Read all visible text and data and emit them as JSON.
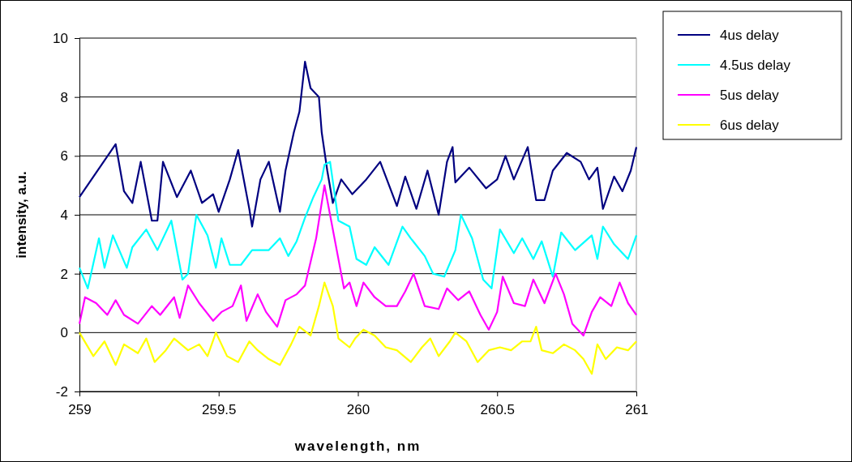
{
  "chart_data": {
    "type": "line",
    "xlabel": "wavelength, nm",
    "ylabel": "intensity, a.u.",
    "xlim": [
      259,
      261
    ],
    "xticks": [
      259,
      259.5,
      260,
      260.5,
      261
    ],
    "ylim": [
      -2,
      10
    ],
    "yticks": [
      -2,
      0,
      2,
      4,
      6,
      8,
      10
    ],
    "grid": "y",
    "legend": "top right",
    "marker": "none",
    "line_style": "solid",
    "series": [
      {
        "name": "4us delay",
        "color": "#000080",
        "x": [
          259,
          259.13,
          259.16,
          259.19,
          259.22,
          259.26,
          259.28,
          259.3,
          259.35,
          259.4,
          259.44,
          259.48,
          259.5,
          259.54,
          259.57,
          259.61,
          259.62,
          259.65,
          259.68,
          259.72,
          259.74,
          259.77,
          259.79,
          259.81,
          259.83,
          259.86,
          259.87,
          259.89,
          259.91,
          259.94,
          259.98,
          260.03,
          260.08,
          260.14,
          260.17,
          260.21,
          260.25,
          260.29,
          260.32,
          260.34,
          260.35,
          260.4,
          260.46,
          260.5,
          260.53,
          260.56,
          260.61,
          260.64,
          260.67,
          260.7,
          260.75,
          260.8,
          260.83,
          260.86,
          260.88,
          260.92,
          260.95,
          260.98,
          261
        ],
        "values": [
          4.6,
          6.4,
          4.8,
          4.4,
          5.8,
          3.8,
          3.8,
          5.8,
          4.6,
          5.5,
          4.4,
          4.7,
          4.1,
          5.2,
          6.2,
          4.2,
          3.6,
          5.2,
          5.8,
          4.1,
          5.5,
          6.8,
          7.5,
          9.2,
          8.3,
          8,
          6.8,
          5.5,
          4.4,
          5.2,
          4.7,
          5.2,
          5.8,
          4.3,
          5.3,
          4.2,
          5.5,
          4,
          5.8,
          6.3,
          5.1,
          5.6,
          4.9,
          5.2,
          6,
          5.2,
          6.3,
          4.5,
          4.5,
          5.5,
          6.1,
          5.8,
          5.2,
          5.6,
          4.2,
          5.3,
          4.8,
          5.5,
          6.3
        ]
      },
      {
        "name": "4.5us delay",
        "color": "#00ffff",
        "x": [
          259,
          259.03,
          259.07,
          259.09,
          259.12,
          259.17,
          259.19,
          259.24,
          259.28,
          259.33,
          259.37,
          259.39,
          259.42,
          259.46,
          259.49,
          259.51,
          259.54,
          259.58,
          259.62,
          259.68,
          259.72,
          259.75,
          259.78,
          259.81,
          259.84,
          259.87,
          259.88,
          259.9,
          259.93,
          259.97,
          259.995,
          260.03,
          260.06,
          260.11,
          260.16,
          260.19,
          260.24,
          260.27,
          260.31,
          260.35,
          260.37,
          260.41,
          260.45,
          260.48,
          260.51,
          260.56,
          260.59,
          260.63,
          260.66,
          260.7,
          260.73,
          260.78,
          260.84,
          260.86,
          260.88,
          260.92,
          260.97,
          261
        ],
        "values": [
          2.2,
          1.5,
          3.2,
          2.2,
          3.3,
          2.2,
          2.9,
          3.5,
          2.8,
          3.8,
          1.8,
          2,
          4,
          3.3,
          2.2,
          3.2,
          2.3,
          2.3,
          2.8,
          2.8,
          3.2,
          2.6,
          3.1,
          3.9,
          4.6,
          5.2,
          5.7,
          5.8,
          3.8,
          3.6,
          2.5,
          2.3,
          2.9,
          2.3,
          3.6,
          3.2,
          2.6,
          2,
          1.9,
          2.8,
          4,
          3.2,
          1.8,
          1.5,
          3.5,
          2.7,
          3.2,
          2.5,
          3.1,
          1.9,
          3.4,
          2.8,
          3.3,
          2.5,
          3.6,
          3,
          2.5,
          3.3
        ]
      },
      {
        "name": "5us delay",
        "color": "#ff00ff",
        "x": [
          259,
          259.02,
          259.06,
          259.1,
          259.13,
          259.16,
          259.21,
          259.26,
          259.29,
          259.34,
          259.36,
          259.39,
          259.43,
          259.48,
          259.51,
          259.55,
          259.58,
          259.6,
          259.64,
          259.67,
          259.71,
          259.74,
          259.78,
          259.81,
          259.83,
          259.85,
          259.88,
          259.9,
          259.92,
          259.95,
          259.97,
          259.995,
          260.02,
          260.06,
          260.1,
          260.14,
          260.17,
          260.2,
          260.24,
          260.29,
          260.32,
          260.36,
          260.4,
          260.44,
          260.47,
          260.5,
          260.52,
          260.56,
          260.6,
          260.63,
          260.67,
          260.71,
          260.74,
          260.77,
          260.81,
          260.84,
          260.87,
          260.91,
          260.94,
          260.97,
          261
        ],
        "values": [
          0.3,
          1.2,
          1,
          0.6,
          1.1,
          0.6,
          0.3,
          0.9,
          0.6,
          1.2,
          0.5,
          1.6,
          1,
          0.4,
          0.7,
          0.9,
          1.6,
          0.4,
          1.3,
          0.7,
          0.2,
          1.1,
          1.3,
          1.6,
          2.4,
          3.2,
          5,
          4,
          3,
          1.5,
          1.7,
          0.9,
          1.7,
          1.2,
          0.9,
          0.9,
          1.4,
          2,
          0.9,
          0.8,
          1.5,
          1.1,
          1.4,
          0.6,
          0.1,
          0.7,
          1.9,
          1,
          0.9,
          1.8,
          1,
          2,
          1.3,
          0.3,
          -0.1,
          0.7,
          1.2,
          0.9,
          1.7,
          1,
          0.6
        ]
      },
      {
        "name": "6us delay",
        "color": "#ffff00",
        "x": [
          259,
          259.05,
          259.09,
          259.13,
          259.16,
          259.21,
          259.24,
          259.27,
          259.31,
          259.34,
          259.39,
          259.43,
          259.46,
          259.49,
          259.53,
          259.57,
          259.61,
          259.64,
          259.68,
          259.72,
          259.76,
          259.79,
          259.83,
          259.86,
          259.88,
          259.91,
          259.93,
          259.97,
          259.99,
          260.02,
          260.06,
          260.1,
          260.14,
          260.19,
          260.23,
          260.26,
          260.29,
          260.33,
          260.35,
          260.39,
          260.43,
          260.47,
          260.51,
          260.55,
          260.59,
          260.62,
          260.64,
          260.66,
          260.7,
          260.74,
          260.78,
          260.81,
          260.84,
          260.86,
          260.89,
          260.93,
          260.97,
          261
        ],
        "values": [
          0,
          -0.8,
          -0.3,
          -1.1,
          -0.4,
          -0.7,
          -0.2,
          -1,
          -0.6,
          -0.2,
          -0.6,
          -0.4,
          -0.8,
          0,
          -0.8,
          -1,
          -0.3,
          -0.6,
          -0.9,
          -1.1,
          -0.4,
          0.2,
          -0.1,
          0.9,
          1.7,
          0.9,
          -0.2,
          -0.5,
          -0.2,
          0.1,
          -0.1,
          -0.5,
          -0.6,
          -1,
          -0.5,
          -0.2,
          -0.8,
          -0.3,
          0,
          -0.3,
          -1,
          -0.6,
          -0.5,
          -0.6,
          -0.3,
          -0.3,
          0.2,
          -0.6,
          -0.7,
          -0.4,
          -0.6,
          -0.9,
          -1.4,
          -0.4,
          -0.9,
          -0.5,
          -0.6,
          -0.3
        ]
      }
    ]
  }
}
